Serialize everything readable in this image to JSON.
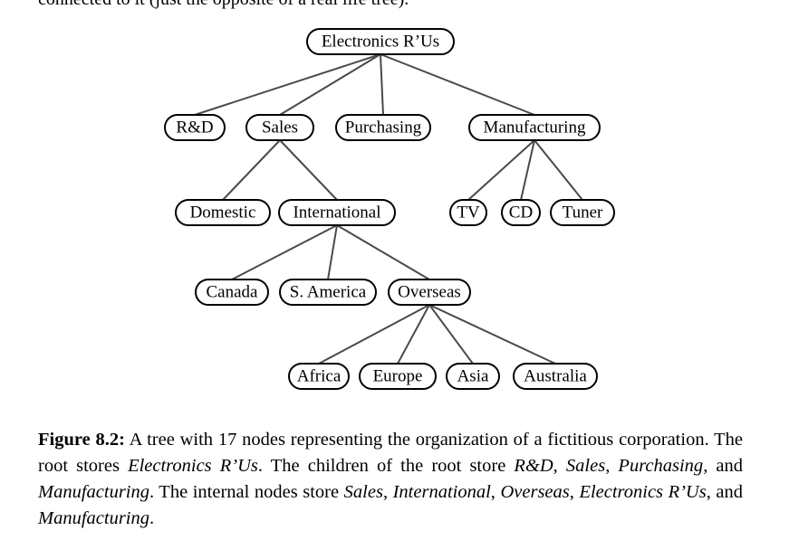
{
  "top_fragment": "connected to it (just the opposite of a real life tree).",
  "tree": {
    "nodes": [
      {
        "id": "root",
        "label": "Electronics R’Us"
      },
      {
        "id": "rd",
        "label": "R&D"
      },
      {
        "id": "sales",
        "label": "Sales"
      },
      {
        "id": "purchasing",
        "label": "Purchasing"
      },
      {
        "id": "manufacturing",
        "label": "Manufacturing"
      },
      {
        "id": "domestic",
        "label": "Domestic"
      },
      {
        "id": "international",
        "label": "International"
      },
      {
        "id": "tv",
        "label": "TV"
      },
      {
        "id": "cd",
        "label": "CD"
      },
      {
        "id": "tuner",
        "label": "Tuner"
      },
      {
        "id": "canada",
        "label": "Canada"
      },
      {
        "id": "samerica",
        "label": "S. America"
      },
      {
        "id": "overseas",
        "label": "Overseas"
      },
      {
        "id": "africa",
        "label": "Africa"
      },
      {
        "id": "europe",
        "label": "Europe"
      },
      {
        "id": "asia",
        "label": "Asia"
      },
      {
        "id": "australia",
        "label": "Australia"
      }
    ],
    "edges": [
      [
        "root",
        "rd"
      ],
      [
        "root",
        "sales"
      ],
      [
        "root",
        "purchasing"
      ],
      [
        "root",
        "manufacturing"
      ],
      [
        "sales",
        "domestic"
      ],
      [
        "sales",
        "international"
      ],
      [
        "manufacturing",
        "tv"
      ],
      [
        "manufacturing",
        "cd"
      ],
      [
        "manufacturing",
        "tuner"
      ],
      [
        "international",
        "canada"
      ],
      [
        "international",
        "samerica"
      ],
      [
        "international",
        "overseas"
      ],
      [
        "overseas",
        "africa"
      ],
      [
        "overseas",
        "europe"
      ],
      [
        "overseas",
        "asia"
      ],
      [
        "overseas",
        "australia"
      ]
    ]
  },
  "caption": {
    "label": "Figure 8.2:",
    "t1": " A tree with 17 nodes representing the organization of a fictitious corporation. The root stores ",
    "i1": "Electronics R’Us",
    "t2": ". The children of the root store ",
    "i2": "R&D",
    "t3": ", ",
    "i3": "Sales",
    "t4": ", ",
    "i4": "Purchasing",
    "t5": ", and ",
    "i5": "Manufacturing",
    "t6": ". The internal nodes store ",
    "i6": "Sales",
    "t7": ", ",
    "i7": "International",
    "t8": ", ",
    "i8": "Overseas",
    "t9": ", ",
    "i9": "Electronics R’Us",
    "t10": ", and ",
    "i10": "Manufacturing",
    "t11": "."
  }
}
